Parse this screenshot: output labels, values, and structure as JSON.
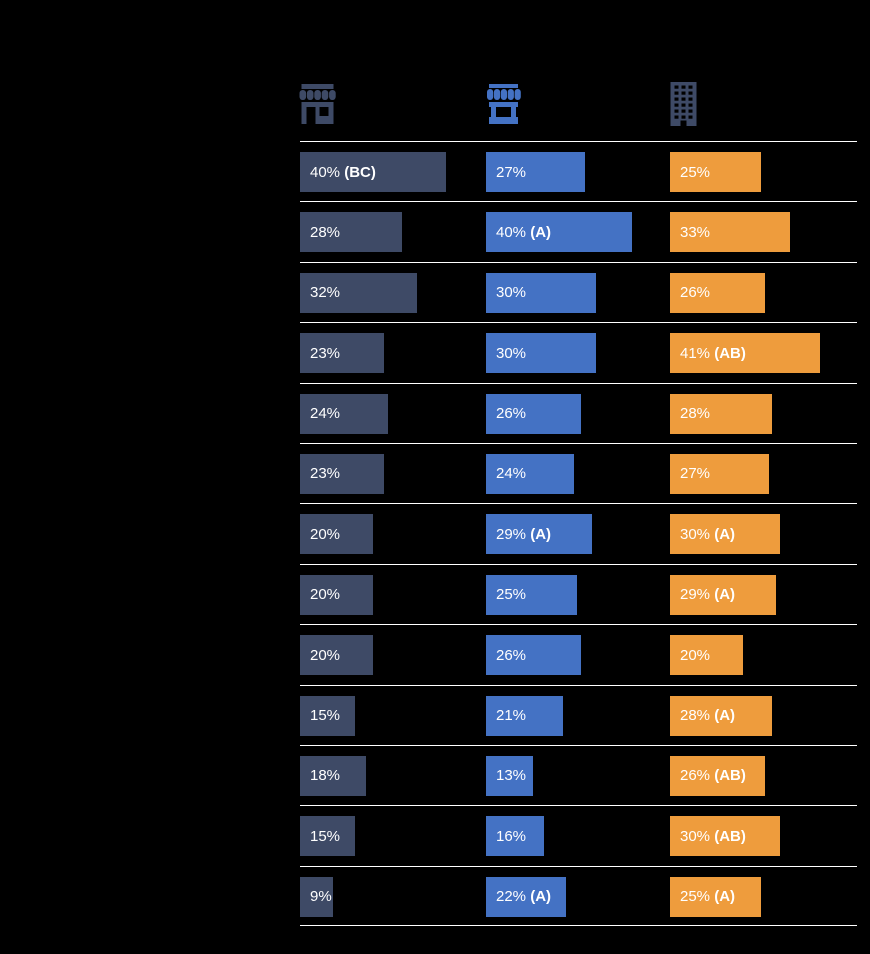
{
  "background": "#000000",
  "separator_color": "#ffffff",
  "header": {
    "icons": [
      {
        "name": "storefront-icon",
        "color": "#3E4A66"
      },
      {
        "name": "market-stall-icon",
        "color": "#4472C4"
      },
      {
        "name": "office-building-icon",
        "color": "#3E4A66"
      }
    ]
  },
  "chart_data": {
    "type": "bar",
    "orientation": "horizontal",
    "unit": "percent",
    "grid": "row-separators",
    "legend_position": "top-icons",
    "series": [
      {
        "name": "column-1",
        "color": "#3E4A66"
      },
      {
        "name": "column-2",
        "color": "#4472C4"
      },
      {
        "name": "column-3",
        "color": "#EE9C3D"
      }
    ],
    "value_range": [
      0,
      50
    ],
    "rows": [
      {
        "cells": [
          {
            "value": 40,
            "sig": "(BC)"
          },
          {
            "value": 27,
            "sig": ""
          },
          {
            "value": 25,
            "sig": ""
          }
        ]
      },
      {
        "cells": [
          {
            "value": 28,
            "sig": ""
          },
          {
            "value": 40,
            "sig": "(A)"
          },
          {
            "value": 33,
            "sig": ""
          }
        ]
      },
      {
        "cells": [
          {
            "value": 32,
            "sig": ""
          },
          {
            "value": 30,
            "sig": ""
          },
          {
            "value": 26,
            "sig": ""
          }
        ]
      },
      {
        "cells": [
          {
            "value": 23,
            "sig": ""
          },
          {
            "value": 30,
            "sig": ""
          },
          {
            "value": 41,
            "sig": "(AB)"
          }
        ]
      },
      {
        "cells": [
          {
            "value": 24,
            "sig": ""
          },
          {
            "value": 26,
            "sig": ""
          },
          {
            "value": 28,
            "sig": ""
          }
        ]
      },
      {
        "cells": [
          {
            "value": 23,
            "sig": ""
          },
          {
            "value": 24,
            "sig": ""
          },
          {
            "value": 27,
            "sig": ""
          }
        ]
      },
      {
        "cells": [
          {
            "value": 20,
            "sig": ""
          },
          {
            "value": 29,
            "sig": "(A)"
          },
          {
            "value": 30,
            "sig": "(A)"
          }
        ]
      },
      {
        "cells": [
          {
            "value": 20,
            "sig": ""
          },
          {
            "value": 25,
            "sig": ""
          },
          {
            "value": 29,
            "sig": "(A)"
          }
        ]
      },
      {
        "cells": [
          {
            "value": 20,
            "sig": ""
          },
          {
            "value": 26,
            "sig": ""
          },
          {
            "value": 20,
            "sig": ""
          }
        ]
      },
      {
        "cells": [
          {
            "value": 15,
            "sig": ""
          },
          {
            "value": 21,
            "sig": ""
          },
          {
            "value": 28,
            "sig": "(A)"
          }
        ]
      },
      {
        "cells": [
          {
            "value": 18,
            "sig": ""
          },
          {
            "value": 13,
            "sig": ""
          },
          {
            "value": 26,
            "sig": "(AB)"
          }
        ]
      },
      {
        "cells": [
          {
            "value": 15,
            "sig": ""
          },
          {
            "value": 16,
            "sig": ""
          },
          {
            "value": 30,
            "sig": "(AB)"
          }
        ]
      },
      {
        "cells": [
          {
            "value": 9,
            "sig": ""
          },
          {
            "value": 22,
            "sig": "(A)"
          },
          {
            "value": 25,
            "sig": "(A)"
          }
        ]
      }
    ]
  }
}
